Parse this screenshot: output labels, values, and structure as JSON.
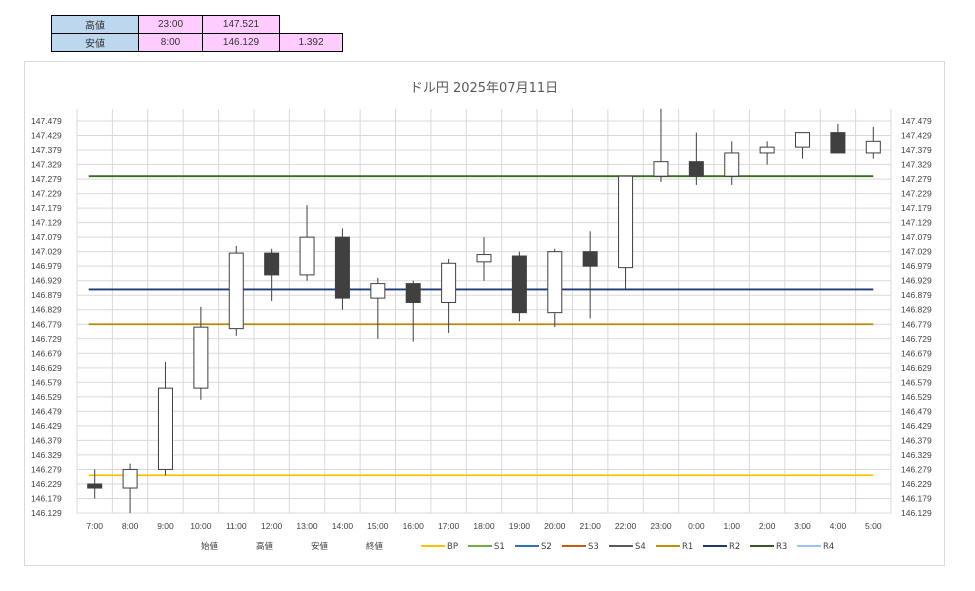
{
  "summary": {
    "high_label": "高値",
    "high_time": "23:00",
    "high_value": "147.521",
    "low_label": "安値",
    "low_time": "8:00",
    "low_value": "146.129",
    "range": "1.392"
  },
  "chart_data": {
    "type": "candlestick",
    "title": "ドル円  2025年07月11日",
    "y_ticks": [
      "146.129",
      "146.179",
      "146.229",
      "146.279",
      "146.329",
      "146.379",
      "146.429",
      "146.479",
      "146.529",
      "146.579",
      "146.629",
      "146.679",
      "146.729",
      "146.779",
      "146.829",
      "146.879",
      "146.929",
      "146.979",
      "147.029",
      "147.079",
      "147.129",
      "147.179",
      "147.229",
      "147.279",
      "147.329",
      "147.379",
      "147.429",
      "147.479"
    ],
    "ylim": [
      146.129,
      147.479
    ],
    "categories": [
      "7:00",
      "8:00",
      "9:00",
      "10:00",
      "11:00",
      "12:00",
      "13:00",
      "14:00",
      "15:00",
      "16:00",
      "17:00",
      "18:00",
      "19:00",
      "20:00",
      "21:00",
      "22:00",
      "23:00",
      "0:00",
      "1:00",
      "2:00",
      "3:00",
      "4:00",
      "5:00"
    ],
    "candles": [
      {
        "open": 146.229,
        "high": 146.279,
        "low": 146.179,
        "close": 146.215
      },
      {
        "open": 146.215,
        "high": 146.299,
        "low": 146.129,
        "close": 146.279
      },
      {
        "open": 146.279,
        "high": 146.649,
        "low": 146.259,
        "close": 146.559
      },
      {
        "open": 146.559,
        "high": 146.839,
        "low": 146.519,
        "close": 146.769
      },
      {
        "open": 146.764,
        "high": 147.049,
        "low": 146.739,
        "close": 147.024
      },
      {
        "open": 147.024,
        "high": 147.039,
        "low": 146.859,
        "close": 146.949
      },
      {
        "open": 146.949,
        "high": 147.189,
        "low": 146.929,
        "close": 147.079
      },
      {
        "open": 147.079,
        "high": 147.109,
        "low": 146.829,
        "close": 146.869
      },
      {
        "open": 146.869,
        "high": 146.939,
        "low": 146.729,
        "close": 146.919
      },
      {
        "open": 146.919,
        "high": 146.929,
        "low": 146.719,
        "close": 146.854
      },
      {
        "open": 146.854,
        "high": 147.004,
        "low": 146.749,
        "close": 146.989
      },
      {
        "open": 146.994,
        "high": 147.079,
        "low": 146.929,
        "close": 147.019
      },
      {
        "open": 147.014,
        "high": 147.029,
        "low": 146.789,
        "close": 146.819
      },
      {
        "open": 146.819,
        "high": 147.039,
        "low": 146.769,
        "close": 147.029
      },
      {
        "open": 147.029,
        "high": 147.099,
        "low": 146.799,
        "close": 146.979
      },
      {
        "open": 146.974,
        "high": 147.289,
        "low": 146.899,
        "close": 147.289
      },
      {
        "open": 147.289,
        "high": 147.521,
        "low": 147.269,
        "close": 147.339
      },
      {
        "open": 147.339,
        "high": 147.439,
        "low": 147.259,
        "close": 147.289
      },
      {
        "open": 147.289,
        "high": 147.409,
        "low": 147.259,
        "close": 147.369
      },
      {
        "open": 147.369,
        "high": 147.409,
        "low": 147.329,
        "close": 147.389
      },
      {
        "open": 147.389,
        "high": 147.439,
        "low": 147.349,
        "close": 147.439
      },
      {
        "open": 147.439,
        "high": 147.469,
        "low": 147.369,
        "close": 147.369
      },
      {
        "open": 147.369,
        "high": 147.459,
        "low": 147.349,
        "close": 147.409
      }
    ],
    "levels": [
      {
        "name": "BP",
        "value": 146.259,
        "color": "#ffc000"
      },
      {
        "name": "R1",
        "value": 146.779,
        "color": "#b8860b"
      },
      {
        "name": "R2",
        "value": 146.899,
        "color": "#1f3a7a"
      },
      {
        "name": "R3",
        "value": 147.289,
        "color": "#3a6b1f"
      }
    ],
    "legend": [
      {
        "name": "始値",
        "type": "none",
        "color": ""
      },
      {
        "name": "高値",
        "type": "none",
        "color": ""
      },
      {
        "name": "安値",
        "type": "none",
        "color": ""
      },
      {
        "name": "終値",
        "type": "none",
        "color": ""
      },
      {
        "name": "BP",
        "type": "line",
        "color": "#ffc000"
      },
      {
        "name": "S1",
        "type": "line",
        "color": "#70ad47"
      },
      {
        "name": "S2",
        "type": "line",
        "color": "#2e75b6"
      },
      {
        "name": "S3",
        "type": "line",
        "color": "#c55a11"
      },
      {
        "name": "S4",
        "type": "line",
        "color": "#595959"
      },
      {
        "name": "R1",
        "type": "line",
        "color": "#bf9000"
      },
      {
        "name": "R2",
        "type": "line",
        "color": "#203864"
      },
      {
        "name": "R3",
        "type": "line",
        "color": "#375623"
      },
      {
        "name": "R4",
        "type": "line",
        "color": "#9dc3e6"
      }
    ]
  }
}
